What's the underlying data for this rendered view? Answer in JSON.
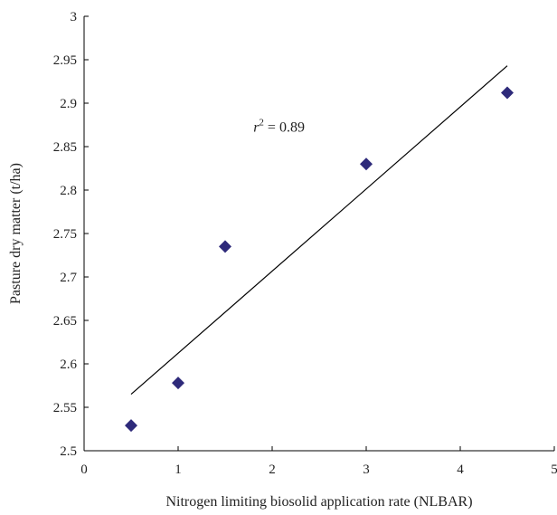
{
  "chart_data": {
    "type": "scatter",
    "title": "",
    "xlabel": "Nitrogen limiting biosolid application rate (NLBAR)",
    "ylabel": "Pasture dry matter (t/ha)",
    "xlim": [
      0,
      5
    ],
    "ylim": [
      2.5,
      3.0
    ],
    "x_ticks": [
      0,
      1,
      2,
      3,
      4,
      5
    ],
    "y_ticks": [
      2.5,
      2.55,
      2.6,
      2.65,
      2.7,
      2.75,
      2.8,
      2.85,
      2.9,
      2.95,
      3
    ],
    "grid": false,
    "marker": "diamond",
    "marker_color": "#2e2a7a",
    "points": [
      {
        "x": 0.5,
        "y": 2.529
      },
      {
        "x": 1.0,
        "y": 2.578
      },
      {
        "x": 1.5,
        "y": 2.735
      },
      {
        "x": 3.0,
        "y": 2.83
      },
      {
        "x": 4.5,
        "y": 2.912
      }
    ],
    "trendline": {
      "x_start": 0.5,
      "y_start": 2.565,
      "x_end": 4.5,
      "y_end": 2.943
    },
    "annotation": {
      "r_symbol": "r",
      "exponent": "2",
      "value_text": " = 0.89",
      "x": 1.8,
      "y": 2.867
    }
  }
}
